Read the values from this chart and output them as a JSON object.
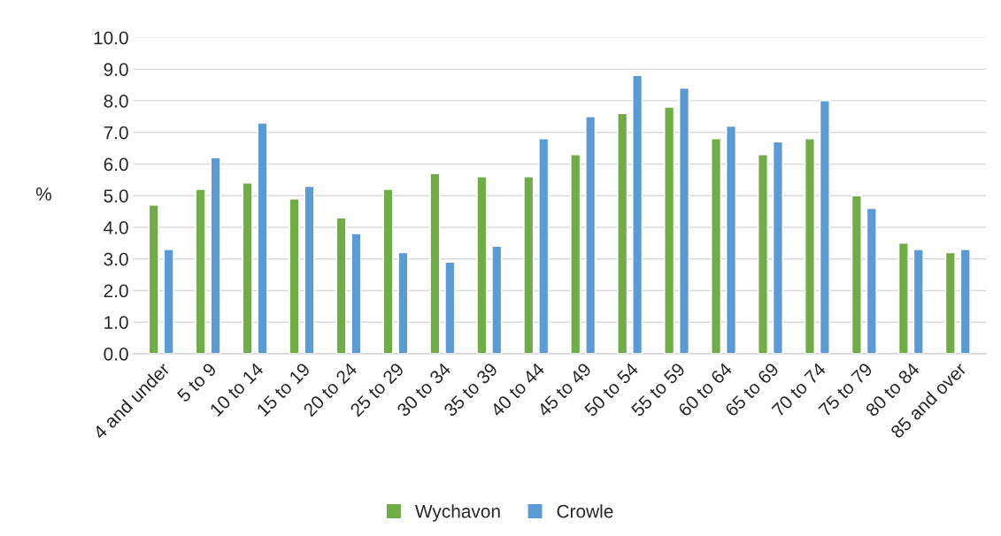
{
  "chart_data": {
    "type": "bar",
    "categories": [
      "4 and under",
      "5 to 9",
      "10 to 14",
      "15 to 19",
      "20 to 24",
      "25 to 29",
      "30 to 34",
      "35 to 39",
      "40 to 44",
      "45 to 49",
      "50 to 54",
      "55 to 59",
      "60 to 64",
      "65 to 69",
      "70 to 74",
      "75 to 79",
      "80 to 84",
      "85 and over"
    ],
    "series": [
      {
        "name": "Wychavon",
        "color": "#70ad47",
        "values": [
          4.7,
          5.2,
          5.4,
          4.9,
          4.3,
          5.2,
          5.7,
          5.6,
          5.6,
          6.3,
          7.6,
          7.8,
          6.8,
          6.3,
          6.8,
          5.0,
          3.5,
          3.2
        ]
      },
      {
        "name": "Crowle",
        "color": "#5b9bd5",
        "values": [
          3.3,
          6.2,
          7.3,
          5.3,
          3.8,
          3.2,
          2.9,
          3.4,
          6.8,
          7.5,
          8.8,
          8.4,
          7.2,
          6.7,
          8.0,
          4.6,
          3.3,
          3.3
        ]
      }
    ],
    "ylabel": "%",
    "ylim": [
      0,
      10
    ],
    "yticks": [
      {
        "value": 0,
        "label": "0.0"
      },
      {
        "value": 1,
        "label": "1.0"
      },
      {
        "value": 2,
        "label": "2.0"
      },
      {
        "value": 3,
        "label": "3.0"
      },
      {
        "value": 4,
        "label": "4.0"
      },
      {
        "value": 5,
        "label": "5.0"
      },
      {
        "value": 6,
        "label": "6.0"
      },
      {
        "value": 7,
        "label": "7.0"
      },
      {
        "value": 8,
        "label": "8.0"
      },
      {
        "value": 9,
        "label": "9.0"
      },
      {
        "value": 10,
        "label": "10.0"
      }
    ],
    "grid": "y",
    "legend": "bottom"
  }
}
